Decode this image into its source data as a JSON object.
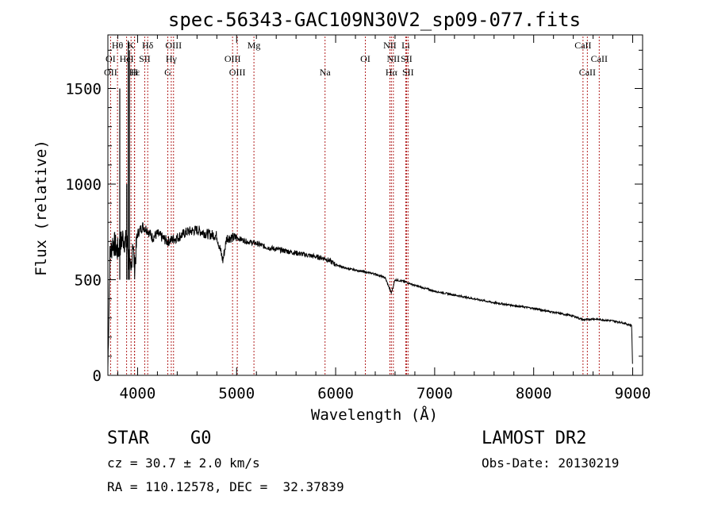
{
  "chart_data": {
    "type": "line",
    "title": "spec-56343-GAC109N30V2_sp09-077.fits",
    "xlabel": "Wavelength (Å)",
    "ylabel": "Flux (relative)",
    "xlim": [
      3700,
      9100
    ],
    "ylim": [
      0,
      1780
    ],
    "xticks": [
      4000,
      5000,
      6000,
      7000,
      8000,
      9000
    ],
    "yticks": [
      0,
      500,
      1000,
      1500
    ],
    "xtick_labels": [
      "4000",
      "5000",
      "6000",
      "7000",
      "8000",
      "9000"
    ],
    "ytick_labels": [
      "0",
      "500",
      "1000",
      "1500"
    ],
    "grid": false,
    "line_color": "#000000",
    "marker_color": "#b22222",
    "series": [
      {
        "x": [
          3700,
          3720,
          3750,
          3800,
          3850,
          3900,
          3933,
          3950,
          3968,
          4000,
          4050,
          4100,
          4150,
          4200,
          4300,
          4400,
          4500,
          4600,
          4700,
          4800,
          4861,
          4900,
          5000,
          5100,
          5200,
          5300,
          5400,
          5500,
          5600,
          5700,
          5800,
          5900,
          6000,
          6100,
          6200,
          6300,
          6400,
          6500,
          6563,
          6600,
          6700,
          6800,
          6900,
          7000,
          7200,
          7400,
          7600,
          7800,
          8000,
          8200,
          8400,
          8500,
          8600,
          8700,
          8800,
          8900,
          8990,
          9000
        ],
        "y": [
          40,
          620,
          700,
          650,
          720,
          680,
          500,
          720,
          560,
          740,
          780,
          760,
          720,
          740,
          700,
          720,
          750,
          760,
          740,
          730,
          600,
          720,
          720,
          700,
          690,
          670,
          660,
          650,
          640,
          630,
          620,
          610,
          580,
          560,
          550,
          540,
          530,
          510,
          430,
          500,
          490,
          470,
          455,
          440,
          420,
          400,
          380,
          365,
          350,
          330,
          310,
          290,
          295,
          290,
          285,
          275,
          260,
          10
        ]
      }
    ],
    "spikes": [
      {
        "x": 3820,
        "y": 1500
      },
      {
        "x": 3905,
        "y": 1750
      },
      {
        "x": 3918,
        "y": 1700
      },
      {
        "x": 3890,
        "y": 1000
      }
    ],
    "lines_top": [
      {
        "label": "Hθ",
        "x": 3797
      },
      {
        "label": "K",
        "x": 3934
      },
      {
        "label": "Hδ",
        "x": 4102
      },
      {
        "label": "OIII",
        "x": 4363
      },
      {
        "label": "Mg",
        "x": 5175
      },
      {
        "label": "NII",
        "x": 6548
      },
      {
        "label": "Li",
        "x": 6708
      },
      {
        "label": "CaII",
        "x": 8498
      }
    ],
    "lines_mid": [
      {
        "label": "OI",
        "x": 3727
      },
      {
        "label": "HeI",
        "x": 3889
      },
      {
        "label": "SII",
        "x": 4072
      },
      {
        "label": "Hγ",
        "x": 4340
      },
      {
        "label": "OIII",
        "x": 4959
      },
      {
        "label": "OI",
        "x": 6300
      },
      {
        "label": "NII",
        "x": 6583
      },
      {
        "label": "SII",
        "x": 6716
      },
      {
        "label": "CaII",
        "x": 8662
      }
    ],
    "lines_low": [
      {
        "label": "OII",
        "x": 3727
      },
      {
        "label": "Hε",
        "x": 3970
      },
      {
        "label": "H",
        "x": 3968
      },
      {
        "label": "G",
        "x": 4305
      },
      {
        "label": "OIII",
        "x": 5007
      },
      {
        "label": "Na",
        "x": 5893
      },
      {
        "label": "Hα",
        "x": 6563
      },
      {
        "label": "SII",
        "x": 6731
      },
      {
        "label": "CaII",
        "x": 8542
      }
    ]
  },
  "info": {
    "class": "STAR",
    "subclass": "G0",
    "survey": "LAMOST DR2",
    "cz": "cz = 30.7 ± 2.0 km/s",
    "coords": "RA = 110.12578, DEC =  32.37839",
    "obs_date": "Obs-Date: 20130219"
  }
}
